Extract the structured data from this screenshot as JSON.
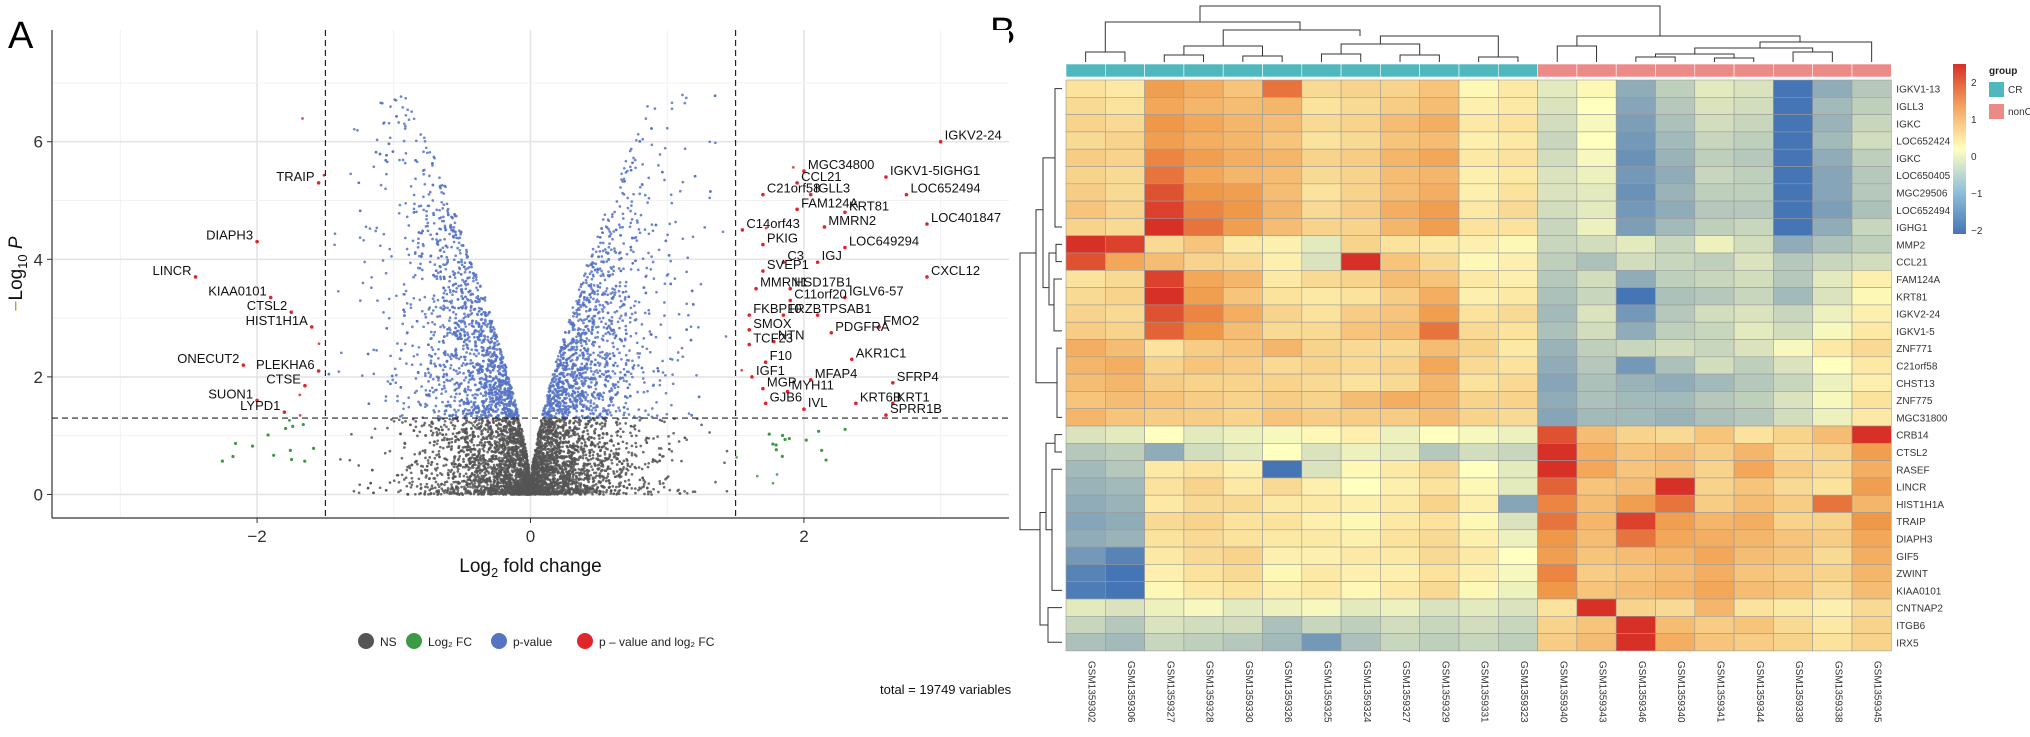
{
  "chart_data": [
    {
      "panel": "A",
      "type": "scatter",
      "subtype": "volcano",
      "xlabel": "Log2 fold change",
      "ylabel": "-Log10 P",
      "xlim": [
        -3.5,
        3.5
      ],
      "ylim": [
        -0.4,
        7.9
      ],
      "xticks": [
        -2,
        0,
        2
      ],
      "yticks": [
        0,
        2,
        4,
        6
      ],
      "fc_cutoff": 1.5,
      "p_cutoff": 1.3,
      "grid": true,
      "legend": [
        "NS",
        "Log2 FC",
        "p - value",
        "p - value and log2 FC"
      ],
      "legend_colors": [
        "#555555",
        "#3c9a46",
        "#5673c4",
        "#e0262b"
      ],
      "caption": "total = 19749 variables",
      "labeled_points": [
        {
          "label": "IGKV2-24",
          "x": 3.0,
          "y": 6.0
        },
        {
          "label": "MGC34800",
          "x": 2.0,
          "y": 5.5
        },
        {
          "label": "CCL21",
          "x": 1.95,
          "y": 5.3
        },
        {
          "label": "IGKV1-5IGHG1",
          "x": 2.6,
          "y": 5.4
        },
        {
          "label": "IGLL3",
          "x": 2.05,
          "y": 5.1
        },
        {
          "label": "C21orf58",
          "x": 1.7,
          "y": 5.1
        },
        {
          "label": "LOC652494",
          "x": 2.75,
          "y": 5.1
        },
        {
          "label": "FAM124A",
          "x": 1.95,
          "y": 4.85
        },
        {
          "label": "KRT81",
          "x": 2.3,
          "y": 4.8
        },
        {
          "label": "LOC401847",
          "x": 2.9,
          "y": 4.6
        },
        {
          "label": "MMRN2",
          "x": 2.15,
          "y": 4.55
        },
        {
          "label": "C14orf43",
          "x": 1.55,
          "y": 4.5
        },
        {
          "label": "PKIG",
          "x": 1.7,
          "y": 4.25
        },
        {
          "label": "LOC649294",
          "x": 2.3,
          "y": 4.2
        },
        {
          "label": "IGJ",
          "x": 2.1,
          "y": 3.95
        },
        {
          "label": "C3",
          "x": 1.85,
          "y": 3.95
        },
        {
          "label": "SVEP1",
          "x": 1.7,
          "y": 3.8
        },
        {
          "label": "CXCL12",
          "x": 2.9,
          "y": 3.7
        },
        {
          "label": "MMRN1",
          "x": 1.65,
          "y": 3.5
        },
        {
          "label": "HSD17B1",
          "x": 1.9,
          "y": 3.5
        },
        {
          "label": "C11orf20",
          "x": 1.9,
          "y": 3.3
        },
        {
          "label": "IGLV6-57",
          "x": 2.3,
          "y": 3.35
        },
        {
          "label": "FKBP10",
          "x": 1.6,
          "y": 3.05
        },
        {
          "label": "FRZB",
          "x": 1.85,
          "y": 3.05
        },
        {
          "label": "TPSAB1",
          "x": 2.1,
          "y": 3.05
        },
        {
          "label": "FMO2",
          "x": 2.55,
          "y": 2.85
        },
        {
          "label": "SMOX",
          "x": 1.6,
          "y": 2.8
        },
        {
          "label": "PDGFRA",
          "x": 2.2,
          "y": 2.75
        },
        {
          "label": "NTN",
          "x": 1.78,
          "y": 2.6
        },
        {
          "label": "TCF23",
          "x": 1.6,
          "y": 2.55
        },
        {
          "label": "AKR1C1",
          "x": 2.35,
          "y": 2.3
        },
        {
          "label": "F10",
          "x": 1.72,
          "y": 2.25
        },
        {
          "label": "IGF1",
          "x": 1.62,
          "y": 2.0
        },
        {
          "label": "MFAP4",
          "x": 2.05,
          "y": 1.95
        },
        {
          "label": "SFRP4",
          "x": 2.65,
          "y": 1.9
        },
        {
          "label": "MGP",
          "x": 1.7,
          "y": 1.8
        },
        {
          "label": "MYH11",
          "x": 1.88,
          "y": 1.75
        },
        {
          "label": "KRT1",
          "x": 2.65,
          "y": 1.55
        },
        {
          "label": "GJB6",
          "x": 1.72,
          "y": 1.55
        },
        {
          "label": "KRT6B",
          "x": 2.38,
          "y": 1.55
        },
        {
          "label": "IVL",
          "x": 2.0,
          "y": 1.45
        },
        {
          "label": "SPRR1B",
          "x": 2.6,
          "y": 1.35
        },
        {
          "label": "TRAIP",
          "x": -1.55,
          "y": 5.3
        },
        {
          "label": "DIAPH3",
          "x": -2.0,
          "y": 4.3
        },
        {
          "label": "LINCR",
          "x": -2.45,
          "y": 3.7
        },
        {
          "label": "KIAA0101",
          "x": -1.9,
          "y": 3.35
        },
        {
          "label": "CTSL2",
          "x": -1.75,
          "y": 3.1
        },
        {
          "label": "HIST1H1A",
          "x": -1.6,
          "y": 2.85
        },
        {
          "label": "ONECUT2",
          "x": -2.1,
          "y": 2.2
        },
        {
          "label": "PLEKHA6",
          "x": -1.55,
          "y": 2.1
        },
        {
          "label": "CTSE",
          "x": -1.65,
          "y": 1.85
        },
        {
          "label": "SUON1",
          "x": -2.0,
          "y": 1.6
        },
        {
          "label": "LYPD1",
          "x": -1.8,
          "y": 1.4
        }
      ]
    },
    {
      "panel": "B",
      "type": "heatmap",
      "annotation_title": "group",
      "groups": [
        {
          "name": "CR",
          "color": "#4fb8bf"
        },
        {
          "name": "nonCR",
          "color": "#ec8a88"
        }
      ],
      "color_scale": {
        "min": -2,
        "max": 2,
        "ticks": [
          2,
          1,
          0,
          -1,
          -2
        ],
        "low": "#4575b4",
        "mid": "#ffffbf",
        "high": "#d73027"
      },
      "columns": [
        "GSM1359302",
        "GSM1359306",
        "GSM1359327",
        "GSM1359328",
        "GSM1359330",
        "GSM1359326",
        "GSM1359325",
        "GSM1359324",
        "GSM1359327",
        "GSM1359329",
        "GSM1359331",
        "GSM1359323",
        "GSM1359340",
        "GSM1359343",
        "GSM1359346",
        "GSM1359340",
        "GSM1359341",
        "GSM1359344",
        "GSM1359339",
        "GSM1359338",
        "GSM1359345"
      ],
      "rows": [
        "IGKV1-13",
        "IGLL3",
        "IGKC",
        "LOC652424",
        "IGKC",
        "LOC650405",
        "MGC29506",
        "LOC652494",
        "IGHG1",
        "MMP2",
        "CCL21",
        "FAM124A",
        "KRT81",
        "IGKV2-24",
        "IGKV1-5",
        "ZNF771",
        "C21orf58",
        "CHST13",
        "ZNF775",
        "MGC31800",
        "CRB14",
        "CTSL2",
        "RASEF",
        "LINCR",
        "HIST1H1A",
        "TRAIP",
        "DIAPH3",
        "GIF5",
        "ZWINT",
        "KIAA0101",
        "CNTNAP2",
        "ITGB6",
        "IRX5"
      ],
      "values": [
        [
          0.4,
          0.3,
          1.3,
          1.1,
          0.8,
          1.6,
          0.5,
          0.6,
          0.6,
          0.8,
          0.1,
          0.3,
          -0.3,
          0.1,
          -1.2,
          -0.7,
          -0.3,
          -0.4,
          -2.6,
          -1.2,
          -0.8
        ],
        [
          0.5,
          0.4,
          1.2,
          1.0,
          0.9,
          1.0,
          0.4,
          0.5,
          0.7,
          0.9,
          0.2,
          0.3,
          -0.4,
          0.0,
          -1.3,
          -0.8,
          -0.4,
          -0.5,
          -2.3,
          -1.0,
          -0.7
        ],
        [
          0.6,
          0.5,
          1.4,
          1.2,
          1.0,
          0.9,
          0.5,
          0.6,
          0.9,
          1.1,
          0.3,
          0.4,
          -0.5,
          -0.1,
          -1.4,
          -0.9,
          -0.5,
          -0.6,
          -2.2,
          -1.1,
          -0.6
        ],
        [
          0.5,
          0.6,
          1.3,
          1.1,
          1.0,
          0.8,
          0.4,
          0.5,
          0.8,
          0.9,
          0.2,
          0.3,
          -0.6,
          0.0,
          -1.5,
          -1.0,
          -0.6,
          -0.7,
          -2.1,
          -1.0,
          -0.5
        ],
        [
          0.7,
          0.6,
          1.5,
          1.3,
          1.1,
          1.0,
          0.6,
          0.7,
          1.0,
          1.2,
          0.3,
          0.4,
          -0.5,
          -0.1,
          -1.6,
          -1.1,
          -0.7,
          -0.8,
          -2.3,
          -1.2,
          -0.7
        ],
        [
          0.6,
          0.5,
          1.6,
          1.2,
          1.0,
          0.9,
          0.5,
          0.6,
          0.9,
          1.0,
          0.2,
          0.3,
          -0.4,
          -0.2,
          -1.5,
          -1.2,
          -0.6,
          -0.7,
          -2.4,
          -1.3,
          -0.8
        ],
        [
          0.7,
          0.5,
          1.8,
          1.4,
          1.3,
          0.9,
          0.4,
          0.6,
          0.9,
          1.1,
          0.2,
          0.4,
          -0.4,
          -0.3,
          -1.6,
          -1.1,
          -0.7,
          -0.7,
          -2.5,
          -1.3,
          -0.8
        ],
        [
          0.8,
          0.6,
          1.9,
          1.5,
          1.4,
          1.0,
          0.5,
          0.7,
          1.1,
          1.3,
          0.3,
          0.5,
          -0.5,
          -0.3,
          -1.5,
          -1.2,
          -0.8,
          -0.8,
          -2.5,
          -1.4,
          -0.9
        ],
        [
          0.6,
          0.5,
          2.0,
          1.6,
          1.3,
          0.9,
          0.6,
          0.6,
          1.0,
          1.3,
          0.4,
          0.4,
          -0.6,
          -0.2,
          -1.4,
          -1.0,
          -0.7,
          -0.6,
          -2.3,
          -1.2,
          -0.6
        ],
        [
          2.0,
          1.9,
          0.5,
          0.8,
          0.3,
          0.2,
          -0.3,
          0.6,
          0.4,
          0.3,
          0.2,
          0.1,
          -0.6,
          -0.5,
          -0.3,
          -0.6,
          -0.2,
          -0.5,
          -1.2,
          -0.9,
          -0.7
        ],
        [
          1.8,
          1.2,
          0.9,
          0.6,
          0.5,
          0.2,
          -0.4,
          2.2,
          0.8,
          0.5,
          0.1,
          0.2,
          -0.7,
          -0.9,
          -0.5,
          -0.6,
          -0.7,
          -0.4,
          -0.8,
          -0.6,
          -0.5
        ],
        [
          0.4,
          0.5,
          1.9,
          1.2,
          1.0,
          0.3,
          0.5,
          0.6,
          0.9,
          0.8,
          0.3,
          0.2,
          -0.8,
          -0.5,
          -1.2,
          -0.7,
          -0.6,
          -0.5,
          -0.8,
          -0.3,
          0.2
        ],
        [
          0.5,
          0.6,
          2.0,
          1.3,
          0.8,
          0.4,
          0.3,
          0.4,
          0.7,
          1.1,
          0.2,
          0.3,
          -0.9,
          -0.6,
          -2.1,
          -0.9,
          -0.8,
          -0.6,
          -1.0,
          -0.4,
          0.1
        ],
        [
          0.6,
          0.5,
          1.8,
          1.5,
          1.1,
          0.6,
          0.4,
          0.7,
          0.8,
          1.3,
          0.4,
          0.5,
          -1.0,
          -0.4,
          -1.5,
          -0.8,
          -0.5,
          -0.4,
          -0.6,
          -0.2,
          0.2
        ],
        [
          0.7,
          0.6,
          1.7,
          1.4,
          0.9,
          0.5,
          0.5,
          0.8,
          0.9,
          1.6,
          0.5,
          0.4,
          -0.9,
          -0.5,
          -1.2,
          -0.7,
          -0.6,
          -0.3,
          -0.5,
          -0.1,
          0.3
        ],
        [
          1.1,
          0.9,
          0.4,
          0.7,
          0.8,
          1.0,
          0.6,
          0.5,
          0.5,
          0.9,
          0.6,
          0.3,
          -1.1,
          -0.7,
          -0.6,
          -0.5,
          -0.6,
          -0.4,
          -0.1,
          0.3,
          0.5
        ],
        [
          1.0,
          1.1,
          0.6,
          0.8,
          0.7,
          0.5,
          0.6,
          0.5,
          0.6,
          1.2,
          0.5,
          0.4,
          -1.2,
          -0.8,
          -1.5,
          -0.9,
          -0.5,
          -0.7,
          -0.4,
          0.0,
          0.3
        ],
        [
          0.9,
          1.0,
          0.7,
          0.6,
          0.6,
          0.6,
          0.5,
          0.4,
          0.5,
          1.0,
          0.4,
          0.5,
          -1.3,
          -0.9,
          -1.1,
          -1.2,
          -1.0,
          -0.8,
          -0.6,
          -0.2,
          0.2
        ],
        [
          0.8,
          0.9,
          0.8,
          0.7,
          0.6,
          0.7,
          0.6,
          0.9,
          1.1,
          1.0,
          0.6,
          0.6,
          -1.2,
          -0.9,
          -1.0,
          -1.0,
          -0.8,
          -0.7,
          -0.4,
          -0.1,
          0.4
        ],
        [
          1.0,
          0.8,
          0.7,
          0.7,
          0.6,
          0.8,
          0.7,
          0.7,
          0.7,
          0.9,
          0.6,
          0.5,
          -1.3,
          -1.0,
          -1.0,
          -1.1,
          -0.9,
          -0.8,
          -0.5,
          -0.2,
          0.3
        ],
        [
          -0.4,
          -0.3,
          0.0,
          -0.3,
          -0.2,
          -0.1,
          0.1,
          0.2,
          -0.2,
          0.0,
          -0.1,
          -0.2,
          1.8,
          0.9,
          0.6,
          0.5,
          0.8,
          0.4,
          0.6,
          0.9,
          2.0
        ],
        [
          -0.8,
          -0.7,
          -1.2,
          -0.5,
          -0.3,
          0.0,
          -0.4,
          -0.2,
          -0.3,
          -0.8,
          -0.5,
          -0.6,
          2.4,
          1.1,
          0.8,
          0.9,
          0.7,
          1.0,
          0.5,
          0.6,
          1.3
        ],
        [
          -1.0,
          -0.8,
          0.3,
          0.4,
          0.2,
          -2.6,
          -0.4,
          0.1,
          0.3,
          0.5,
          0.0,
          -0.3,
          2.0,
          1.2,
          0.8,
          0.9,
          0.6,
          1.2,
          0.7,
          0.5,
          1.1
        ],
        [
          -1.1,
          -1.0,
          0.4,
          0.6,
          0.3,
          0.5,
          0.2,
          0.0,
          0.2,
          0.4,
          0.1,
          -0.3,
          1.7,
          0.8,
          0.9,
          2.2,
          0.6,
          0.8,
          0.5,
          0.4,
          1.3
        ],
        [
          -1.2,
          -1.1,
          0.3,
          0.5,
          0.5,
          0.3,
          0.3,
          0.2,
          0.3,
          0.6,
          0.2,
          -1.3,
          1.5,
          0.9,
          1.3,
          1.6,
          0.7,
          0.9,
          0.7,
          1.6,
          1.0
        ],
        [
          -1.3,
          -1.2,
          0.5,
          0.6,
          0.4,
          0.4,
          0.2,
          0.1,
          0.3,
          0.4,
          0.1,
          -0.4,
          1.6,
          1.0,
          1.9,
          1.3,
          1.0,
          1.1,
          0.6,
          0.6,
          1.4
        ],
        [
          -1.2,
          -1.1,
          0.4,
          0.5,
          0.4,
          0.3,
          0.3,
          0.2,
          0.4,
          0.5,
          0.2,
          -0.2,
          1.4,
          0.9,
          1.6,
          1.2,
          1.1,
          1.0,
          0.8,
          0.7,
          1.2
        ],
        [
          -1.5,
          -1.8,
          0.3,
          0.5,
          0.6,
          0.2,
          0.2,
          0.3,
          0.3,
          0.5,
          0.3,
          0.0,
          1.3,
          0.8,
          0.9,
          1.0,
          1.2,
          0.9,
          0.8,
          0.5,
          1.1
        ],
        [
          -1.8,
          -2.0,
          0.2,
          0.4,
          0.5,
          0.1,
          0.3,
          0.2,
          0.2,
          0.4,
          0.2,
          -0.1,
          1.5,
          0.7,
          0.8,
          0.9,
          1.1,
          0.8,
          0.7,
          0.6,
          1.0
        ],
        [
          -1.9,
          -2.1,
          0.1,
          0.3,
          0.4,
          0.2,
          0.3,
          0.1,
          0.3,
          0.5,
          0.1,
          -0.2,
          1.4,
          0.8,
          0.9,
          1.0,
          1.2,
          0.9,
          0.8,
          0.5,
          0.9
        ],
        [
          -0.3,
          -0.4,
          -0.2,
          -0.1,
          -0.3,
          -0.2,
          -0.1,
          -0.3,
          -0.2,
          -0.4,
          -0.3,
          -0.4,
          0.4,
          2.3,
          0.6,
          0.5,
          1.0,
          0.4,
          0.3,
          0.2,
          0.5
        ],
        [
          -0.6,
          -0.8,
          -0.4,
          -0.5,
          -0.5,
          -0.9,
          -0.6,
          -0.7,
          -0.5,
          -0.6,
          -0.5,
          -0.6,
          0.6,
          0.8,
          2.5,
          0.9,
          0.7,
          0.8,
          0.5,
          0.3,
          0.6
        ],
        [
          -0.9,
          -1.0,
          -0.6,
          -0.7,
          -0.8,
          -1.0,
          -1.5,
          -0.9,
          -0.6,
          -0.7,
          -0.6,
          -0.7,
          0.7,
          0.9,
          2.7,
          1.1,
          0.8,
          0.7,
          0.6,
          0.4,
          0.6
        ]
      ]
    }
  ]
}
